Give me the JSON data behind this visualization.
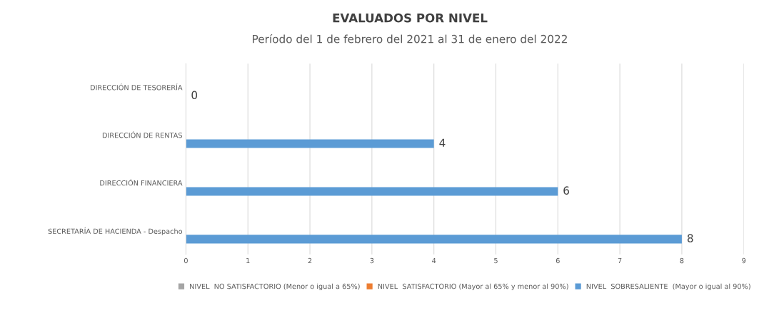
{
  "chart_data": {
    "type": "bar",
    "orientation": "horizontal",
    "title": "EVALUADOS POR NIVEL",
    "subtitle": "Período del 1 de febrero del 2021 al 31 de enero del 2022",
    "categories": [
      "DIRECCIÓN DE TESORERÍA",
      "DIRECCIÓN DE RENTAS",
      "DIRECCIÓN FINANCIERA",
      "SECRETARÍA DE HACIENDA - Despacho"
    ],
    "series": [
      {
        "name": "NIVEL  NO SATISFACTORIO (Menor o igual a 65%)",
        "color": "#a5a5a5",
        "values": [
          null,
          null,
          null,
          null
        ]
      },
      {
        "name": "NIVEL  SATISFACTORIO (Mayor al 65% y menor al 90%)",
        "color": "#ed7d31",
        "values": [
          null,
          null,
          null,
          null
        ]
      },
      {
        "name": "NIVEL  SOBRESALIENTE  (Mayor o igual al 90%)",
        "color": "#5b9bd5",
        "values": [
          0,
          4,
          6,
          8
        ],
        "value_labels": [
          "0",
          "4",
          "6",
          "8"
        ]
      }
    ],
    "xlim": [
      0,
      9
    ],
    "xticks": [
      0,
      1,
      2,
      3,
      4,
      5,
      6,
      7,
      8,
      9
    ],
    "grid": "x",
    "legend": "bottom"
  }
}
